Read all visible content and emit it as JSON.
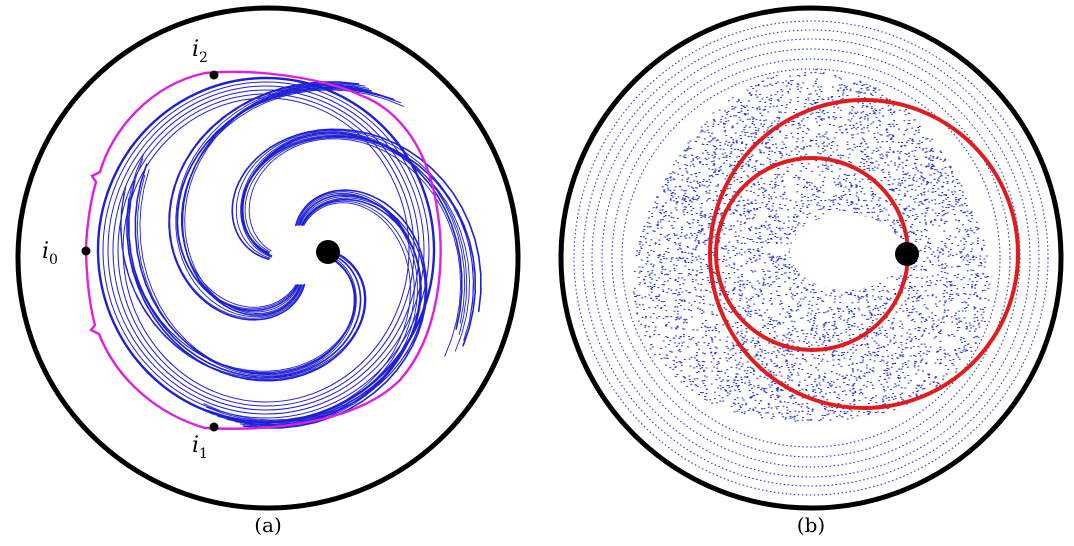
{
  "panels": [
    {
      "caption": "(a)",
      "points": [
        {
          "base": "i",
          "sub": "2"
        },
        {
          "base": "i",
          "sub": "0"
        },
        {
          "base": "i",
          "sub": "1"
        }
      ],
      "colors": {
        "boundary": "#000000",
        "curves": "#1f1fd6",
        "loop": "#e020e0",
        "marker": "#000000"
      }
    },
    {
      "caption": "(b)",
      "colors": {
        "boundary": "#000000",
        "dots": "#2a3ad0",
        "orbits": "#e01c1c",
        "marker": "#000000"
      }
    }
  ]
}
